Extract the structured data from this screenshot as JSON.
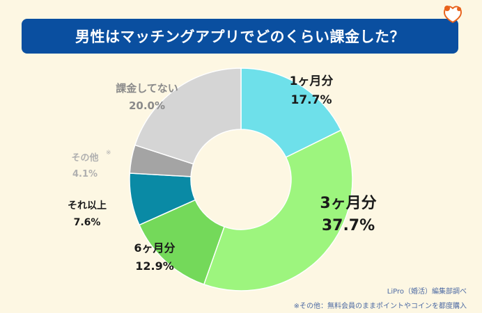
{
  "title": "男性はマッチングアプリでどのくらい課金した？",
  "source": "LiPro（婚活）編集部調べ",
  "footnote": "※その他：無料会員のままポイントやコインを都度購入",
  "other_mark": "※",
  "colors": {
    "title_bg": "#0a4fa0",
    "background": "#fdf7e3",
    "label_dark": "#1a1a1a",
    "label_gray": "#8a8a8a",
    "label_light": "#b0b0b0",
    "brand_orange": "#e8621c"
  },
  "chart_data": {
    "type": "donut",
    "title": "男性はマッチングアプリでどのくらい課金した？",
    "unit": "%",
    "slices": [
      {
        "label": "1ヶ月分",
        "value": 17.7,
        "value_text": "17.7%",
        "color": "#6ee0ea"
      },
      {
        "label": "3ヶ月分",
        "value": 37.7,
        "value_text": "37.7%",
        "color": "#9df57e"
      },
      {
        "label": "6ヶ月分",
        "value": 12.9,
        "value_text": "12.9%",
        "color": "#74d95a"
      },
      {
        "label": "それ以上",
        "value": 7.6,
        "value_text": "7.6%",
        "color": "#0a8aa5"
      },
      {
        "label": "その他",
        "value": 4.1,
        "value_text": "4.1%",
        "color": "#a4a4a4"
      },
      {
        "label": "課金してない",
        "value": 20.0,
        "value_text": "20.0%",
        "color": "#d5d5d5"
      }
    ]
  }
}
